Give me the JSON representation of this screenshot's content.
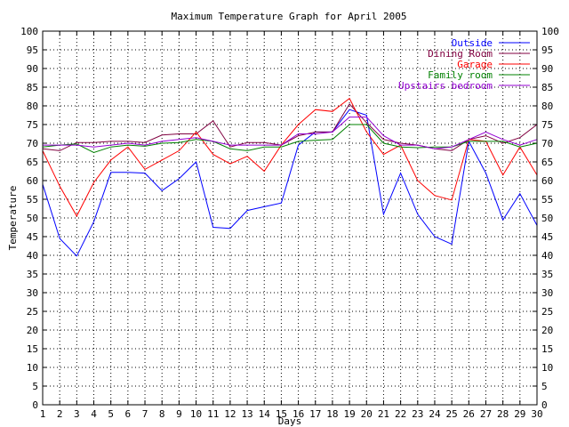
{
  "chart_data": {
    "type": "line",
    "title": "Maximum Temperature Graph for April 2005",
    "xlabel": "Days",
    "ylabel": "Temperature",
    "xlim": [
      1,
      30
    ],
    "ylim": [
      0,
      100
    ],
    "grid": true,
    "legend_position": "top-right",
    "x": [
      1,
      2,
      3,
      4,
      5,
      6,
      7,
      8,
      9,
      10,
      11,
      12,
      13,
      14,
      15,
      16,
      17,
      18,
      19,
      20,
      21,
      22,
      23,
      24,
      25,
      26,
      27,
      28,
      29,
      30
    ],
    "x_ticks": [
      "1",
      "2",
      "3",
      "4",
      "5",
      "6",
      "7",
      "8",
      "9",
      "10",
      "11",
      "12",
      "13",
      "14",
      "15",
      "16",
      "17",
      "18",
      "19",
      "20",
      "21",
      "22",
      "23",
      "24",
      "25",
      "26",
      "27",
      "28",
      "29",
      "30"
    ],
    "y_ticks": [
      "0",
      "5",
      "10",
      "15",
      "20",
      "25",
      "30",
      "35",
      "40",
      "45",
      "50",
      "55",
      "60",
      "65",
      "70",
      "75",
      "80",
      "85",
      "90",
      "95",
      "100"
    ],
    "series": [
      {
        "name": "Outside",
        "color": "#0000ff",
        "values": [
          59,
          44.5,
          39.8,
          49,
          62.2,
          62.2,
          62,
          57.3,
          60.5,
          65,
          47.5,
          47.2,
          52,
          53,
          54,
          69.5,
          73,
          73,
          79,
          77.5,
          51,
          62,
          51,
          45,
          43,
          70.5,
          62,
          49.5,
          56.5,
          48
        ]
      },
      {
        "name": "Dining Room",
        "color": "#800040",
        "values": [
          68.5,
          68,
          70.2,
          70.2,
          70.5,
          70.5,
          70.2,
          72.2,
          72.5,
          72.5,
          76,
          69,
          70.2,
          70.2,
          69.5,
          72,
          73,
          73,
          80.5,
          75.5,
          71,
          70,
          69.5,
          68.5,
          68,
          71,
          72,
          70,
          71.5,
          75
        ]
      },
      {
        "name": "Garage",
        "color": "#ff0000",
        "values": [
          68,
          58.5,
          50.5,
          59.5,
          65.5,
          69,
          63,
          65.5,
          68,
          73,
          67,
          64.5,
          66.5,
          62.5,
          69.5,
          75,
          79,
          78.5,
          82,
          73,
          67,
          69.5,
          60,
          56,
          54.8,
          71,
          70.5,
          61.5,
          69,
          61.5
        ]
      },
      {
        "name": "Family room",
        "color": "#008000",
        "values": [
          69,
          69.5,
          69.8,
          67.5,
          69,
          69.5,
          69.2,
          70,
          70.2,
          71,
          70.5,
          68.5,
          68,
          69,
          69,
          70.5,
          70.8,
          71,
          75,
          75,
          70,
          69,
          68.8,
          69,
          69,
          70.5,
          70.5,
          70.5,
          69,
          70
        ]
      },
      {
        "name": "Upstairs bedroom",
        "color": "#9400d3",
        "values": [
          69.5,
          69.5,
          69.5,
          69,
          69.5,
          70,
          69.5,
          70.5,
          71,
          71.5,
          70.5,
          69.5,
          69.5,
          69.5,
          69.5,
          72.5,
          72.5,
          73,
          77,
          77,
          72,
          69.5,
          69.5,
          68.5,
          69,
          71,
          73,
          71,
          69.5,
          71
        ]
      }
    ]
  }
}
